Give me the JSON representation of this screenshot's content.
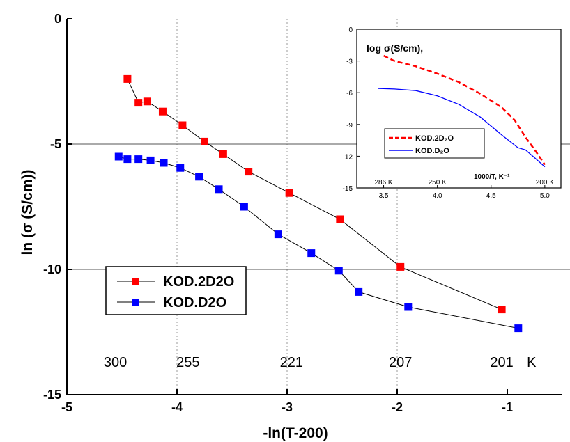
{
  "chart_data": [
    {
      "type": "line",
      "xlabel": "-ln(T-200)",
      "ylabel": "ln (σ (S/cm))",
      "xlim": [
        -5,
        -0.5
      ],
      "ylim": [
        -15,
        0
      ],
      "x_ticks": [
        -5,
        -4,
        -3,
        -2,
        -1
      ],
      "x_tick_labels": [
        "-5",
        "-4",
        "-3",
        "-2",
        "-1"
      ],
      "y_ticks": [
        0,
        -5,
        -10,
        -15
      ],
      "y_tick_labels": [
        "0",
        "-5",
        "-10",
        "-15"
      ],
      "horizontal_reference_lines": [
        -5,
        -10
      ],
      "vertical_gridlines": [
        -4,
        -3,
        -2
      ],
      "temperature_labels": [
        {
          "x": -4.56,
          "text": "300"
        },
        {
          "x": -3.9,
          "text": "255"
        },
        {
          "x": -2.96,
          "text": "221"
        },
        {
          "x": -1.97,
          "text": "207"
        },
        {
          "x": -1.05,
          "text": "201"
        },
        {
          "x": -0.78,
          "text": "K"
        }
      ],
      "legend_placement": "bottom-left",
      "series": [
        {
          "name": "KOD.2D2O",
          "color": "#ff0000",
          "marker": "square",
          "points": [
            {
              "x": -4.45,
              "y": -2.4
            },
            {
              "x": -4.35,
              "y": -3.35
            },
            {
              "x": -4.27,
              "y": -3.3
            },
            {
              "x": -4.13,
              "y": -3.7
            },
            {
              "x": -3.95,
              "y": -4.25
            },
            {
              "x": -3.75,
              "y": -4.9
            },
            {
              "x": -3.58,
              "y": -5.4
            },
            {
              "x": -3.35,
              "y": -6.1
            },
            {
              "x": -2.98,
              "y": -6.95
            },
            {
              "x": -2.52,
              "y": -8.0
            },
            {
              "x": -1.97,
              "y": -9.9
            },
            {
              "x": -1.05,
              "y": -11.6
            }
          ]
        },
        {
          "name": "KOD.D2O",
          "color": "#0000ff",
          "marker": "square",
          "points": [
            {
              "x": -4.53,
              "y": -5.5
            },
            {
              "x": -4.45,
              "y": -5.6
            },
            {
              "x": -4.35,
              "y": -5.6
            },
            {
              "x": -4.24,
              "y": -5.65
            },
            {
              "x": -4.12,
              "y": -5.75
            },
            {
              "x": -3.97,
              "y": -5.95
            },
            {
              "x": -3.8,
              "y": -6.3
            },
            {
              "x": -3.62,
              "y": -6.8
            },
            {
              "x": -3.39,
              "y": -7.5
            },
            {
              "x": -3.08,
              "y": -8.6
            },
            {
              "x": -2.78,
              "y": -9.35
            },
            {
              "x": -2.53,
              "y": -10.05
            },
            {
              "x": -2.35,
              "y": -10.9
            },
            {
              "x": -1.9,
              "y": -11.5
            },
            {
              "x": -0.9,
              "y": -12.35
            }
          ]
        }
      ]
    },
    {
      "type": "line",
      "title": "log σ(S/cm),",
      "xlabel": "1000/T, K⁻¹",
      "xlim": [
        3.25,
        5.15
      ],
      "ylim": [
        -15,
        0
      ],
      "x_ticks": [
        3.5,
        4.0,
        4.5,
        5.0
      ],
      "x_tick_labels": [
        "3.5",
        "4.0",
        "4.5",
        "5.0"
      ],
      "y_ticks": [
        0,
        -3,
        -6,
        -9,
        -12,
        -15
      ],
      "y_tick_labels": [
        "0",
        "-3",
        "-6",
        "-9",
        "-12",
        "-15"
      ],
      "temperature_labels": [
        {
          "x": 3.5,
          "text": "286 K"
        },
        {
          "x": 4.0,
          "text": "250 K"
        },
        {
          "x": 5.0,
          "text": "200 K"
        }
      ],
      "legend_placement": "bottom-left",
      "series": [
        {
          "name": "KOD.2D₂O",
          "color": "#ff0000",
          "style": "dashed",
          "points": [
            {
              "x": 3.5,
              "y": -2.5
            },
            {
              "x": 3.6,
              "y": -3.0
            },
            {
              "x": 3.8,
              "y": -3.5
            },
            {
              "x": 4.0,
              "y": -4.2
            },
            {
              "x": 4.2,
              "y": -5.0
            },
            {
              "x": 4.4,
              "y": -6.1
            },
            {
              "x": 4.6,
              "y": -7.4
            },
            {
              "x": 4.72,
              "y": -8.6
            },
            {
              "x": 4.82,
              "y": -10.2
            },
            {
              "x": 4.92,
              "y": -11.6
            },
            {
              "x": 5.0,
              "y": -12.8
            }
          ]
        },
        {
          "name": "KOD.D₂O",
          "color": "#0000ff",
          "style": "solid",
          "points": [
            {
              "x": 3.45,
              "y": -5.6
            },
            {
              "x": 3.6,
              "y": -5.65
            },
            {
              "x": 3.8,
              "y": -5.8
            },
            {
              "x": 4.0,
              "y": -6.3
            },
            {
              "x": 4.2,
              "y": -7.1
            },
            {
              "x": 4.4,
              "y": -8.3
            },
            {
              "x": 4.6,
              "y": -10.0
            },
            {
              "x": 4.75,
              "y": -11.2
            },
            {
              "x": 4.82,
              "y": -11.4
            },
            {
              "x": 4.9,
              "y": -12.1
            },
            {
              "x": 5.0,
              "y": -13.0
            }
          ]
        }
      ]
    }
  ]
}
